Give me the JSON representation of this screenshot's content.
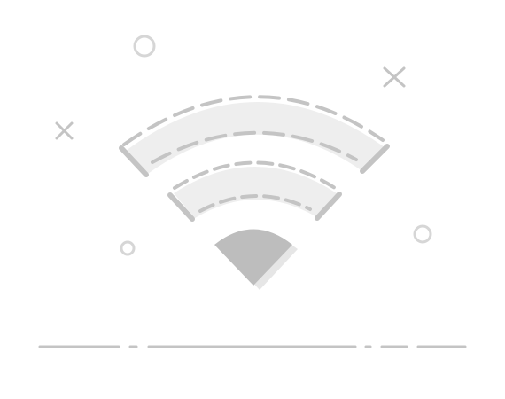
{
  "illustration": {
    "subject": "wifi-no-connection",
    "icons": [
      "wifi-icon",
      "circle-icon",
      "cross-icon"
    ],
    "colors": {
      "background": "#ffffff",
      "band_fill": "#eeeeee",
      "stroke": "#c4c4c4",
      "wedge": "#bdbdbd",
      "wedge_shadow": "#e6e6e6",
      "decoration": "#d6d6d6"
    }
  }
}
